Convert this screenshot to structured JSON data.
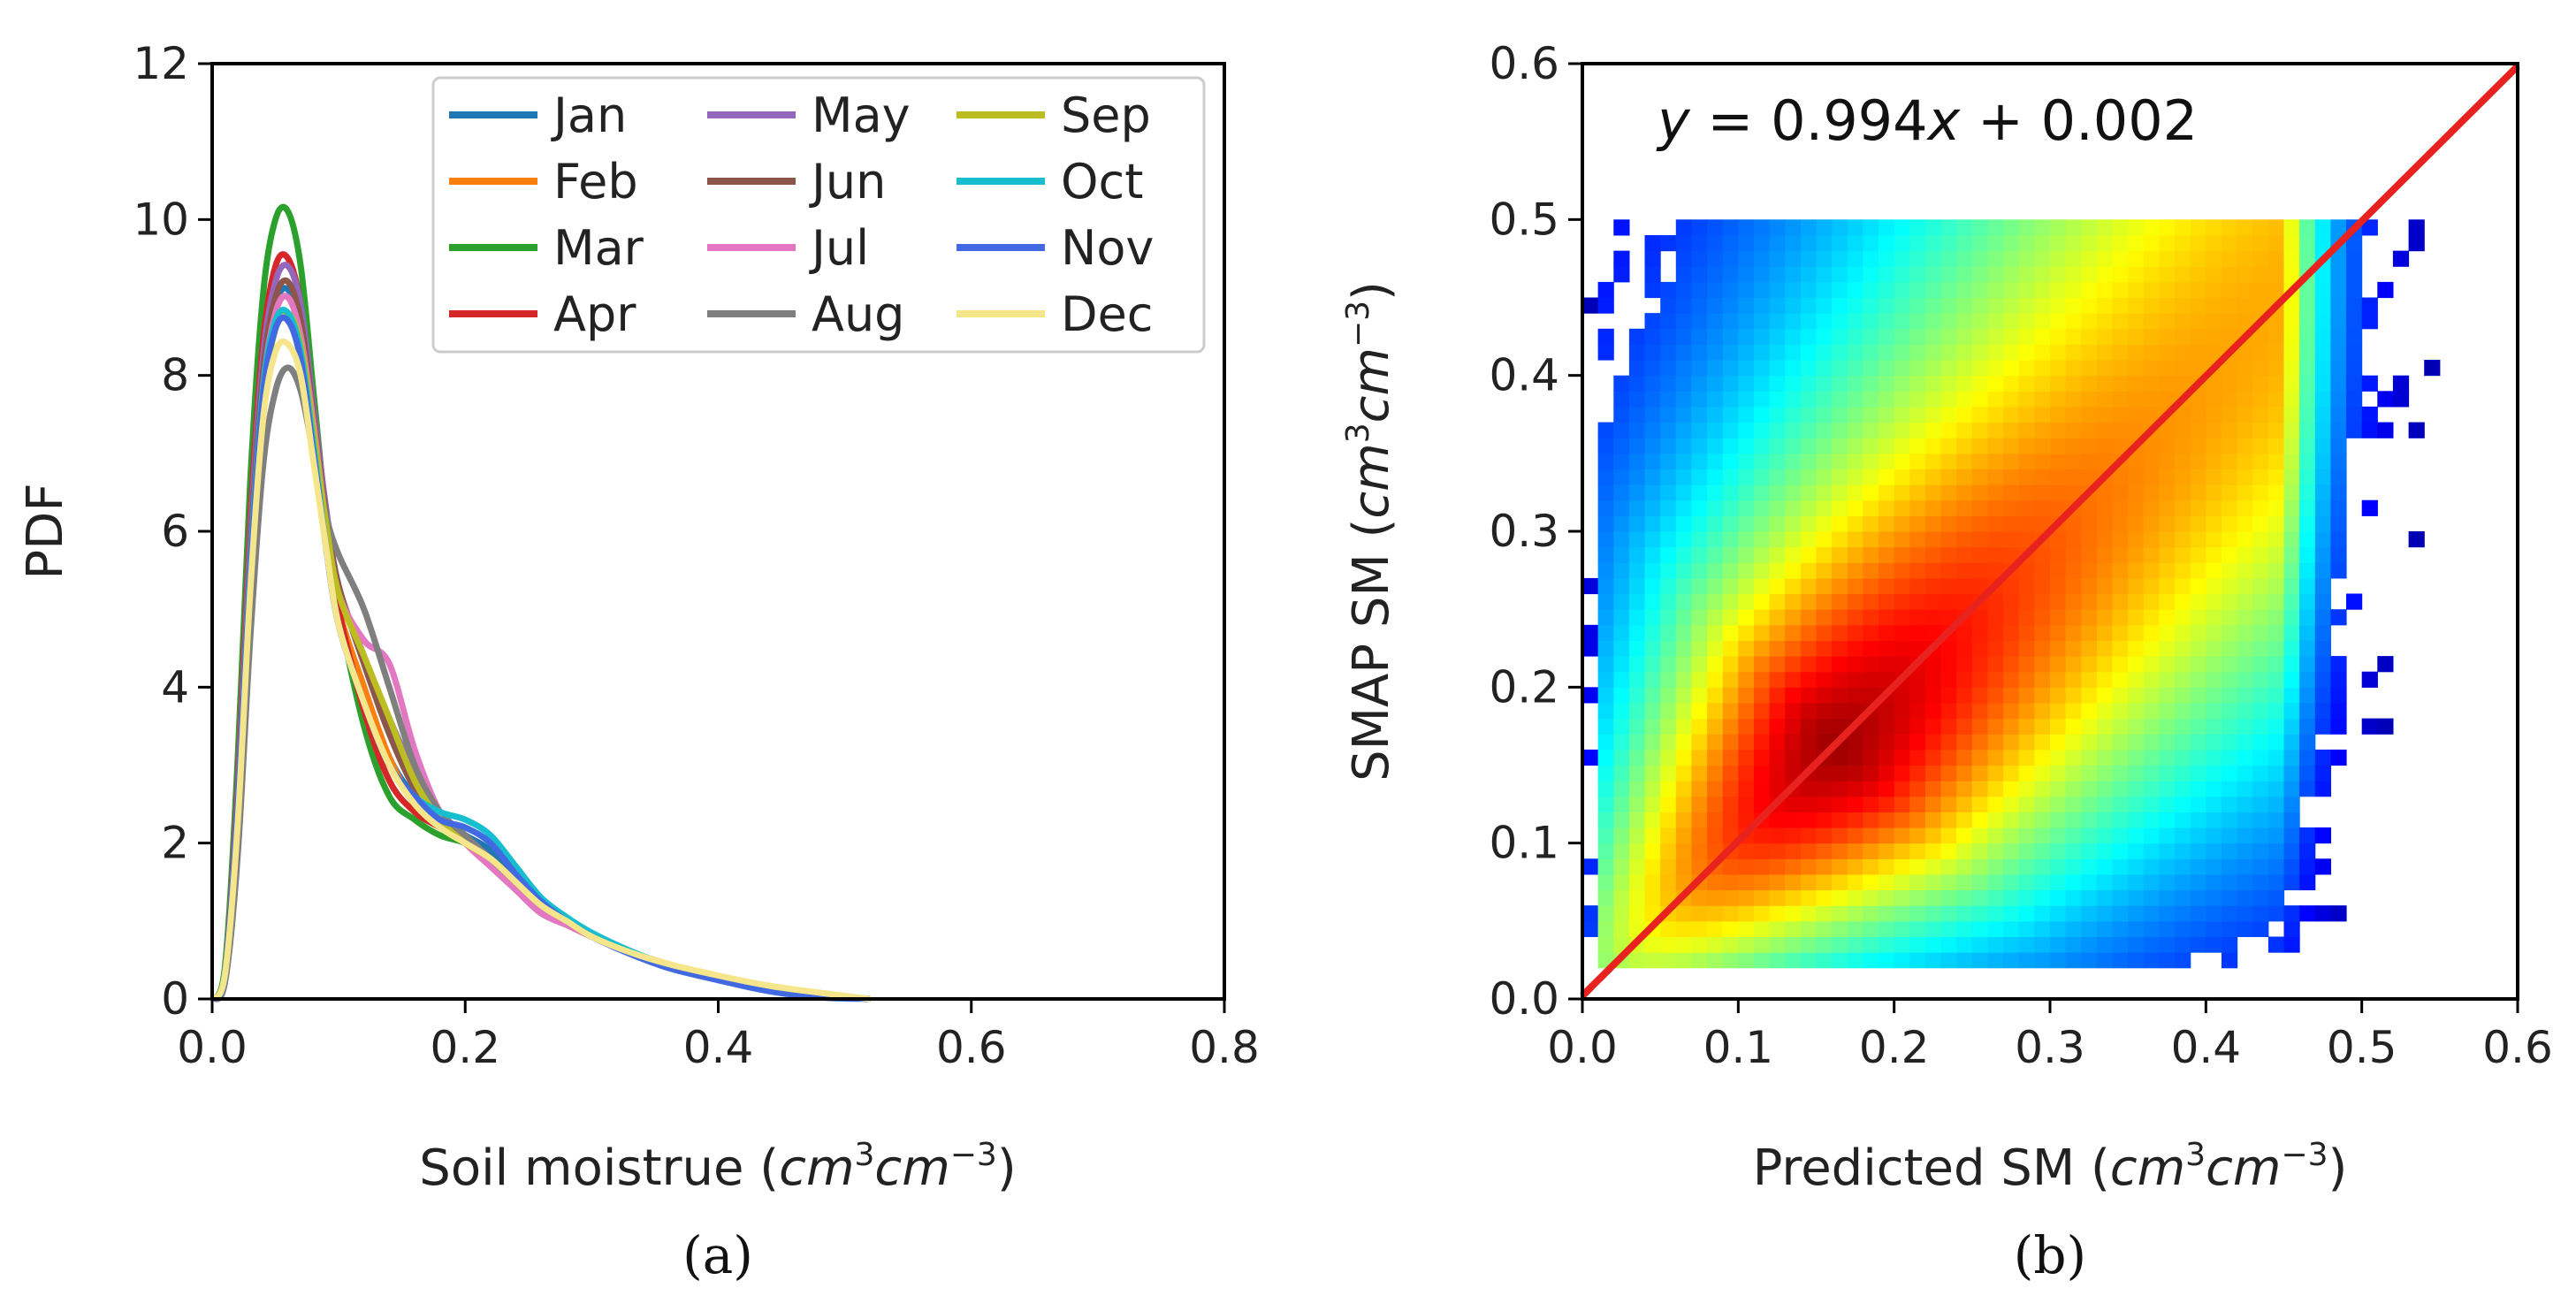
{
  "chart_data": [
    {
      "type": "line",
      "panel": "(a)",
      "title": "",
      "xlabel": "Soil moistrue (cm^3cm^-3)",
      "xlabel_parts": {
        "main": "Soil moistrue (",
        "var1": "cm",
        "sup1": "3",
        "var2": "cm",
        "sup2": "−3",
        "close": ")"
      },
      "ylabel": "PDF",
      "xlim": [
        0.0,
        0.8
      ],
      "ylim": [
        0,
        12
      ],
      "xticks": [
        "0.0",
        "0.2",
        "0.4",
        "0.6",
        "0.8"
      ],
      "yticks": [
        "0",
        "2",
        "4",
        "6",
        "8",
        "10",
        "12"
      ],
      "x": [
        0.0,
        0.01,
        0.02,
        0.03,
        0.04,
        0.05,
        0.06,
        0.07,
        0.08,
        0.09,
        0.1,
        0.12,
        0.14,
        0.16,
        0.18,
        0.2,
        0.22,
        0.24,
        0.26,
        0.28,
        0.3,
        0.33,
        0.36,
        0.4,
        0.44,
        0.48,
        0.52
      ],
      "legend_position": "top-right",
      "series": [
        {
          "name": "Jan",
          "color": "#1f77b4",
          "values": [
            0,
            0.3,
            2.5,
            5.6,
            7.8,
            8.9,
            9.1,
            8.6,
            7.4,
            6.0,
            5.0,
            4.0,
            3.1,
            2.6,
            2.3,
            2.1,
            1.9,
            1.5,
            1.2,
            1.0,
            0.8,
            0.6,
            0.4,
            0.25,
            0.12,
            0.05,
            0.0
          ]
        },
        {
          "name": "Feb",
          "color": "#ff7f0e",
          "values": [
            0,
            0.3,
            2.4,
            5.5,
            7.7,
            8.8,
            9.0,
            8.5,
            7.3,
            6.0,
            5.0,
            4.0,
            3.1,
            2.5,
            2.2,
            2.0,
            1.8,
            1.5,
            1.2,
            1.0,
            0.8,
            0.6,
            0.45,
            0.28,
            0.15,
            0.06,
            0.0
          ]
        },
        {
          "name": "Mar",
          "color": "#2ca02c",
          "values": [
            0,
            0.4,
            3.0,
            6.6,
            9.0,
            10.0,
            10.1,
            9.4,
            7.8,
            6.2,
            5.0,
            3.5,
            2.6,
            2.3,
            2.1,
            2.0,
            1.8,
            1.5,
            1.2,
            1.0,
            0.8,
            0.6,
            0.42,
            0.26,
            0.13,
            0.05,
            0.0
          ]
        },
        {
          "name": "Apr",
          "color": "#d62728",
          "values": [
            0,
            0.3,
            2.7,
            6.1,
            8.4,
            9.4,
            9.5,
            8.9,
            7.5,
            6.1,
            5.0,
            3.7,
            2.8,
            2.4,
            2.2,
            2.0,
            1.8,
            1.5,
            1.2,
            1.0,
            0.8,
            0.6,
            0.42,
            0.26,
            0.13,
            0.05,
            0.0
          ]
        },
        {
          "name": "May",
          "color": "#9467bd",
          "values": [
            0,
            0.3,
            2.6,
            5.9,
            8.2,
            9.2,
            9.4,
            8.9,
            7.6,
            6.3,
            5.3,
            4.4,
            3.6,
            2.9,
            2.4,
            2.1,
            1.8,
            1.5,
            1.2,
            1.0,
            0.8,
            0.6,
            0.42,
            0.26,
            0.13,
            0.05,
            0.0
          ]
        },
        {
          "name": "Jun",
          "color": "#8c564b",
          "values": [
            0,
            0.3,
            2.5,
            5.7,
            8.0,
            9.0,
            9.2,
            8.7,
            7.5,
            6.2,
            5.3,
            4.3,
            3.4,
            2.7,
            2.3,
            2.0,
            1.7,
            1.4,
            1.1,
            0.95,
            0.8,
            0.6,
            0.42,
            0.26,
            0.13,
            0.05,
            0.0
          ]
        },
        {
          "name": "Jul",
          "color": "#e377c2",
          "values": [
            0,
            0.3,
            2.4,
            5.5,
            7.8,
            8.8,
            9.0,
            8.5,
            7.4,
            6.1,
            5.2,
            4.6,
            4.3,
            3.2,
            2.4,
            2.0,
            1.7,
            1.4,
            1.1,
            0.95,
            0.8,
            0.6,
            0.42,
            0.26,
            0.13,
            0.05,
            0.0
          ]
        },
        {
          "name": "Aug",
          "color": "#7f7f7f",
          "values": [
            0,
            0.2,
            1.8,
            4.6,
            6.8,
            7.8,
            8.1,
            7.8,
            7.0,
            6.2,
            5.7,
            5.0,
            4.0,
            3.0,
            2.4,
            2.1,
            1.8,
            1.5,
            1.2,
            1.0,
            0.8,
            0.6,
            0.42,
            0.26,
            0.13,
            0.05,
            0.0
          ]
        },
        {
          "name": "Sep",
          "color": "#bcbd22",
          "values": [
            0,
            0.3,
            2.3,
            5.3,
            7.6,
            8.6,
            8.8,
            8.4,
            7.3,
            6.1,
            5.2,
            4.4,
            3.6,
            2.8,
            2.3,
            2.0,
            1.8,
            1.5,
            1.2,
            1.0,
            0.8,
            0.6,
            0.42,
            0.26,
            0.13,
            0.05,
            0.0
          ]
        },
        {
          "name": "Oct",
          "color": "#17becf",
          "values": [
            0,
            0.3,
            2.4,
            5.5,
            7.8,
            8.7,
            8.8,
            8.3,
            7.1,
            5.8,
            4.8,
            3.8,
            3.0,
            2.6,
            2.4,
            2.3,
            2.1,
            1.7,
            1.3,
            1.05,
            0.85,
            0.62,
            0.44,
            0.27,
            0.14,
            0.05,
            0.0
          ]
        },
        {
          "name": "Nov",
          "color": "#4169e1",
          "values": [
            0,
            0.3,
            2.4,
            5.4,
            7.7,
            8.6,
            8.7,
            8.2,
            7.0,
            5.8,
            4.8,
            3.8,
            3.0,
            2.6,
            2.3,
            2.2,
            2.0,
            1.6,
            1.25,
            1.0,
            0.8,
            0.58,
            0.4,
            0.24,
            0.1,
            0.02,
            0.0
          ]
        },
        {
          "name": "Dec",
          "color": "#f5e68c",
          "values": [
            0,
            0.3,
            2.2,
            5.2,
            7.4,
            8.3,
            8.4,
            8.0,
            6.9,
            5.8,
            4.8,
            3.8,
            3.0,
            2.5,
            2.2,
            2.0,
            1.8,
            1.5,
            1.2,
            1.0,
            0.8,
            0.6,
            0.45,
            0.3,
            0.17,
            0.08,
            0.0
          ]
        }
      ]
    },
    {
      "type": "heatmap",
      "panel": "(b)",
      "title": "",
      "annotation": "y = 0.994x + 0.002",
      "annotation_parts": {
        "y": "y",
        "rest": " = 0.994",
        "x": "x",
        "tail": " + 0.002"
      },
      "xlabel": "Predicted SM (cm^3cm^-3)",
      "xlabel_parts": {
        "main": "Predicted SM (",
        "var1": "cm",
        "sup1": "3",
        "var2": "cm",
        "sup2": "−3",
        "close": ")"
      },
      "ylabel": "SMAP SM (cm^3cm^-3)",
      "ylabel_parts": {
        "main": "SMAP SM (",
        "var1": "cm",
        "sup1": "3",
        "var2": "cm",
        "sup2": "−3",
        "close": ")"
      },
      "xlim": [
        0.0,
        0.6
      ],
      "ylim": [
        0.0,
        0.6
      ],
      "xticks": [
        "0.0",
        "0.1",
        "0.2",
        "0.3",
        "0.4",
        "0.5",
        "0.6"
      ],
      "yticks": [
        "0.0",
        "0.1",
        "0.2",
        "0.3",
        "0.4",
        "0.5",
        "0.6"
      ],
      "y_data_range": [
        0.02,
        0.5
      ],
      "bin_width": 0.01,
      "colormap": "jet",
      "fit_line": {
        "slope": 0.994,
        "intercept": 0.002,
        "color": "#e8231f"
      },
      "reference_line": {
        "slope": 1.0,
        "intercept": 0.0,
        "style": "dashed",
        "color": "#000000"
      }
    }
  ],
  "captions": {
    "a": "(a)",
    "b": "(b)"
  }
}
